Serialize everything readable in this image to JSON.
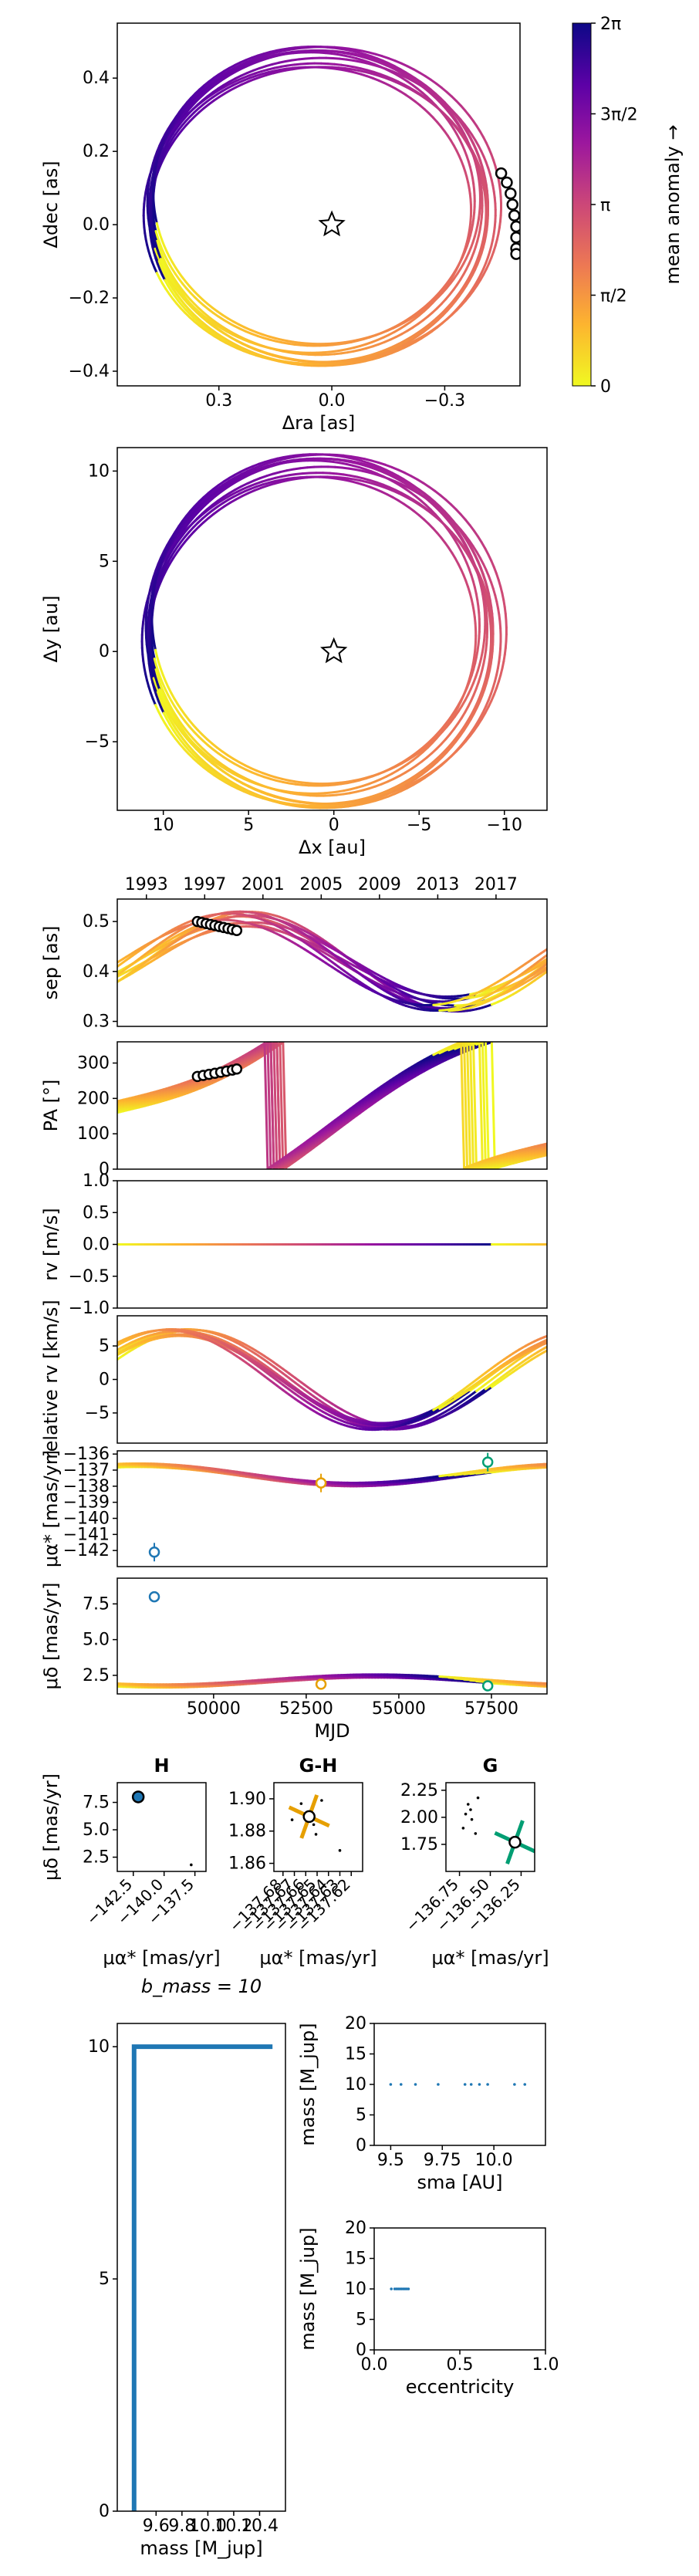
{
  "chart_data": [
    {
      "id": "sky",
      "type": "line",
      "xlabel": "Δra [as]",
      "ylabel": "Δdec [as]",
      "xlim": [
        0.57,
        -0.5
      ],
      "ylim": [
        -0.44,
        0.55
      ],
      "xticks": [
        {
          "v": 0.3,
          "label": "0.3"
        },
        {
          "v": 0.0,
          "label": "0.0"
        },
        {
          "v": -0.3,
          "label": "−0.3"
        }
      ],
      "yticks": [
        {
          "v": 0.4,
          "label": "0.4"
        },
        {
          "v": 0.2,
          "label": "0.2"
        },
        {
          "v": 0.0,
          "label": "0.0"
        },
        {
          "v": -0.2,
          "label": "−0.2"
        },
        {
          "v": -0.4,
          "label": "−0.4"
        }
      ],
      "orbits": [
        {
          "cx": 0.035,
          "cy": 0.045,
          "a": 0.45,
          "b": 0.43,
          "rot": 0.0
        },
        {
          "cx": 0.03,
          "cy": 0.05,
          "a": 0.445,
          "b": 0.425,
          "rot": 0.05
        },
        {
          "cx": 0.045,
          "cy": 0.03,
          "a": 0.455,
          "b": 0.41,
          "rot": -0.05
        },
        {
          "cx": 0.04,
          "cy": 0.06,
          "a": 0.44,
          "b": 0.415,
          "rot": 0.09
        },
        {
          "cx": 0.025,
          "cy": 0.035,
          "a": 0.46,
          "b": 0.42,
          "rot": 0.02
        },
        {
          "cx": 0.05,
          "cy": 0.07,
          "a": 0.43,
          "b": 0.4,
          "rot": 0.12
        },
        {
          "cx": 0.035,
          "cy": 0.025,
          "a": 0.45,
          "b": 0.405,
          "rot": -0.09
        },
        {
          "cx": 0.02,
          "cy": 0.055,
          "a": 0.47,
          "b": 0.43,
          "rot": 0.06
        },
        {
          "cx": 0.055,
          "cy": 0.04,
          "a": 0.425,
          "b": 0.39,
          "rot": 0.0
        },
        {
          "cx": 0.04,
          "cy": 0.08,
          "a": 0.435,
          "b": 0.405,
          "rot": 0.15
        }
      ],
      "star": {
        "x": 0.0,
        "y": 0.0
      },
      "points": [
        {
          "x": -0.45,
          "y": 0.14
        },
        {
          "x": -0.465,
          "y": 0.115
        },
        {
          "x": -0.475,
          "y": 0.085
        },
        {
          "x": -0.48,
          "y": 0.055
        },
        {
          "x": -0.485,
          "y": 0.025
        },
        {
          "x": -0.49,
          "y": -0.005
        },
        {
          "x": -0.49,
          "y": -0.035
        },
        {
          "x": -0.49,
          "y": -0.065
        },
        {
          "x": -0.49,
          "y": -0.08
        }
      ]
    },
    {
      "id": "au",
      "type": "line",
      "xlabel": "Δx [au]",
      "ylabel": "Δy [au]",
      "xlim": [
        12.7,
        -12.5
      ],
      "ylim": [
        -8.8,
        11.3
      ],
      "xticks": [
        {
          "v": 10,
          "label": "10"
        },
        {
          "v": 5,
          "label": "5"
        },
        {
          "v": 0,
          "label": "0"
        },
        {
          "v": -5,
          "label": "−5"
        },
        {
          "v": -10,
          "label": "−10"
        }
      ],
      "yticks": [
        {
          "v": 10,
          "label": "10"
        },
        {
          "v": 5,
          "label": "5"
        },
        {
          "v": 0,
          "label": "0"
        },
        {
          "v": -5,
          "label": "−5"
        }
      ],
      "star": {
        "x": 0.0,
        "y": 0.0
      }
    },
    {
      "id": "colorbar",
      "type": "heatmap",
      "label": "mean anomaly →",
      "ticks": [
        {
          "v": 0,
          "label": "0"
        },
        {
          "v": 0.25,
          "label": "π/2"
        },
        {
          "v": 0.5,
          "label": "π"
        },
        {
          "v": 0.75,
          "label": "3π/2"
        },
        {
          "v": 1.0,
          "label": "2π"
        }
      ],
      "colors": [
        "#f0f921",
        "#fdb42f",
        "#ed7953",
        "#cc4778",
        "#9c179e",
        "#5c01a6",
        "#0d0887"
      ]
    },
    {
      "id": "sep",
      "type": "line",
      "ylabel": "sep [as]",
      "xlim": [
        1991.0,
        2020.5
      ],
      "ylim": [
        0.29,
        0.545
      ],
      "top_ticks": [
        {
          "v": 1993,
          "label": "1993"
        },
        {
          "v": 1997,
          "label": "1997"
        },
        {
          "v": 2001,
          "label": "2001"
        },
        {
          "v": 2005,
          "label": "2005"
        },
        {
          "v": 2009,
          "label": "2009"
        },
        {
          "v": 2013,
          "label": "2013"
        },
        {
          "v": 2017,
          "label": "2017"
        }
      ],
      "yticks": [
        {
          "v": 0.5,
          "label": "0.5"
        },
        {
          "v": 0.4,
          "label": "0.4"
        },
        {
          "v": 0.3,
          "label": "0.3"
        }
      ],
      "points": [
        {
          "x": 1996.5,
          "y": 0.5
        },
        {
          "x": 1996.8,
          "y": 0.498
        },
        {
          "x": 1997.1,
          "y": 0.496
        },
        {
          "x": 1997.4,
          "y": 0.494
        },
        {
          "x": 1997.7,
          "y": 0.492
        },
        {
          "x": 1998.0,
          "y": 0.49
        },
        {
          "x": 1998.3,
          "y": 0.488
        },
        {
          "x": 1998.6,
          "y": 0.486
        },
        {
          "x": 1998.9,
          "y": 0.484
        },
        {
          "x": 1999.2,
          "y": 0.482
        }
      ]
    },
    {
      "id": "pa",
      "type": "line",
      "ylabel": "PA [°]",
      "xlim": [
        1991.0,
        2020.5
      ],
      "ylim": [
        0,
        360
      ],
      "yticks": [
        {
          "v": 300,
          "label": "300"
        },
        {
          "v": 200,
          "label": "200"
        },
        {
          "v": 100,
          "label": "100"
        },
        {
          "v": 0,
          "label": "0"
        }
      ],
      "points": [
        {
          "x": 1996.5,
          "y": 262
        },
        {
          "x": 1996.9,
          "y": 265
        },
        {
          "x": 1997.3,
          "y": 268
        },
        {
          "x": 1997.7,
          "y": 271
        },
        {
          "x": 1998.1,
          "y": 274
        },
        {
          "x": 1998.5,
          "y": 277
        },
        {
          "x": 1998.9,
          "y": 280
        },
        {
          "x": 1999.2,
          "y": 283
        }
      ]
    },
    {
      "id": "rv",
      "type": "line",
      "ylabel": "rv [m/s]",
      "xlim": [
        1991.0,
        2020.5
      ],
      "ylim": [
        -1.0,
        1.0
      ],
      "yticks": [
        {
          "v": 1.0,
          "label": "1.0"
        },
        {
          "v": 0.5,
          "label": "0.5"
        },
        {
          "v": 0.0,
          "label": "0.0"
        },
        {
          "v": -0.5,
          "label": "−0.5"
        },
        {
          "v": -1.0,
          "label": "−1.0"
        }
      ]
    },
    {
      "id": "relrv",
      "type": "line",
      "ylabel": "relative rv [km/s]",
      "xlim": [
        1991.0,
        2020.5
      ],
      "ylim": [
        -9.5,
        9.5
      ],
      "yticks": [
        {
          "v": 5,
          "label": "5"
        },
        {
          "v": 0,
          "label": "0"
        },
        {
          "v": -5,
          "label": "−5"
        }
      ]
    },
    {
      "id": "pmra",
      "type": "line",
      "ylabel": "μα* [mas/yr]",
      "xlim": [
        47400,
        59000
      ],
      "ylim": [
        -143.0,
        -135.8
      ],
      "yticks": [
        {
          "v": -136,
          "label": "−136"
        },
        {
          "v": -137,
          "label": "−137"
        },
        {
          "v": -138,
          "label": "−138"
        },
        {
          "v": -139,
          "label": "−139"
        },
        {
          "v": -140,
          "label": "−140"
        },
        {
          "v": -141,
          "label": "−141"
        },
        {
          "v": -142,
          "label": "−142"
        }
      ],
      "points": [
        {
          "x": 48400,
          "y": -142.1,
          "color": "#1f77b4"
        },
        {
          "x": 52900,
          "y": -137.8,
          "color": "#e69f00"
        },
        {
          "x": 57400,
          "y": -136.5,
          "color": "#009e73"
        }
      ]
    },
    {
      "id": "pmdec",
      "type": "line",
      "xlabel": "MJD",
      "ylabel": "μδ [mas/yr]",
      "xlim": [
        47400,
        59000
      ],
      "ylim": [
        1.2,
        9.3
      ],
      "xticks": [
        {
          "v": 50000,
          "label": "50000"
        },
        {
          "v": 52500,
          "label": "52500"
        },
        {
          "v": 55000,
          "label": "55000"
        },
        {
          "v": 57500,
          "label": "57500"
        }
      ],
      "yticks": [
        {
          "v": 7.5,
          "label": "7.5"
        },
        {
          "v": 5.0,
          "label": "5.0"
        },
        {
          "v": 2.5,
          "label": "2.5"
        }
      ],
      "points": [
        {
          "x": 48400,
          "y": 8.0,
          "color": "#1f77b4"
        },
        {
          "x": 52900,
          "y": 1.88,
          "color": "#e69f00"
        },
        {
          "x": 57400,
          "y": 1.77,
          "color": "#009e73"
        }
      ]
    },
    {
      "id": "pm_H",
      "type": "scatter",
      "title": "H",
      "xlabel": "μα* [mas/yr]",
      "ylabel": "μδ [mas/yr]",
      "xlim": [
        -143.8,
        -136.6
      ],
      "ylim": [
        1.2,
        9.3
      ],
      "xticks": [
        {
          "v": -142.5,
          "label": "−142.5"
        },
        {
          "v": -140.0,
          "label": "−140.0"
        },
        {
          "v": -137.5,
          "label": "−137.5"
        }
      ],
      "yticks": [
        {
          "v": 7.5,
          "label": "7.5"
        },
        {
          "v": 5.0,
          "label": "5.0"
        },
        {
          "v": 2.5,
          "label": "2.5"
        }
      ],
      "obs": {
        "x": -142.1,
        "y": 8.0,
        "color": "#1f77b4"
      },
      "model": [
        {
          "x": -137.8,
          "y": 1.8
        }
      ]
    },
    {
      "id": "pm_GH",
      "type": "scatter",
      "title": "G-H",
      "xlabel": "μα* [mas/yr]",
      "xlim": [
        -137.688,
        -137.61
      ],
      "ylim": [
        1.855,
        1.91
      ],
      "xticks": [
        {
          "v": -137.68,
          "label": "−137.68"
        },
        {
          "v": -137.67,
          "label": "−137.67"
        },
        {
          "v": -137.66,
          "label": "−137.66"
        },
        {
          "v": -137.65,
          "label": "−137.65"
        },
        {
          "v": -137.64,
          "label": "−137.64"
        },
        {
          "v": -137.63,
          "label": "−137.63"
        },
        {
          "v": -137.62,
          "label": "−137.62"
        }
      ],
      "yticks": [
        {
          "v": 1.9,
          "label": "1.90"
        },
        {
          "v": 1.88,
          "label": "1.88"
        },
        {
          "v": 1.86,
          "label": "1.86"
        }
      ],
      "obs": {
        "x": -137.657,
        "y": 1.889,
        "color": "#e69f00"
      },
      "model": [
        {
          "x": -137.672,
          "y": 1.887
        },
        {
          "x": -137.664,
          "y": 1.897
        },
        {
          "x": -137.651,
          "y": 1.878
        },
        {
          "x": -137.646,
          "y": 1.899
        },
        {
          "x": -137.653,
          "y": 1.884
        },
        {
          "x": -137.63,
          "y": 1.868
        }
      ]
    },
    {
      "id": "pm_G",
      "type": "scatter",
      "title": "G",
      "xlabel": "μα* [mas/yr]",
      "xlim": [
        -136.86,
        -136.14
      ],
      "ylim": [
        1.5,
        2.32
      ],
      "xticks": [
        {
          "v": -136.75,
          "label": "−136.75"
        },
        {
          "v": -136.5,
          "label": "−136.50"
        },
        {
          "v": -136.25,
          "label": "−136.25"
        }
      ],
      "yticks": [
        {
          "v": 2.25,
          "label": "2.25"
        },
        {
          "v": 2.0,
          "label": "2.00"
        },
        {
          "v": 1.75,
          "label": "1.75"
        }
      ],
      "obs": {
        "x": -136.3,
        "y": 1.77,
        "color": "#009e73"
      },
      "model": [
        {
          "x": -136.68,
          "y": 2.12
        },
        {
          "x": -136.66,
          "y": 2.07
        },
        {
          "x": -136.7,
          "y": 2.03
        },
        {
          "x": -136.65,
          "y": 1.98
        },
        {
          "x": -136.72,
          "y": 1.9
        },
        {
          "x": -136.62,
          "y": 1.85
        },
        {
          "x": -136.6,
          "y": 2.18
        }
      ]
    },
    {
      "id": "hist",
      "type": "line",
      "title": "b_mass = 10",
      "xlabel": "mass [M_jup]",
      "xlim": [
        9.3,
        10.6
      ],
      "ylim": [
        0,
        10.5
      ],
      "xticks": [
        {
          "v": 9.6,
          "label": "9.6"
        },
        {
          "v": 9.8,
          "label": "9.8"
        },
        {
          "v": 10.0,
          "label": "10.0"
        },
        {
          "v": 10.2,
          "label": "10.2"
        },
        {
          "v": 10.4,
          "label": "10.4"
        }
      ],
      "yticks": [
        {
          "v": 10,
          "label": "10"
        },
        {
          "v": 5,
          "label": "5"
        },
        {
          "v": 0,
          "label": "0"
        }
      ],
      "x": [
        9.43,
        9.43,
        9.45,
        9.45,
        10.5
      ],
      "y": [
        0,
        10,
        10,
        10,
        10
      ],
      "color": "#1f77b4"
    },
    {
      "id": "sma",
      "type": "scatter",
      "xlabel": "sma [AU]",
      "ylabel": "mass [M_jup]",
      "xlim": [
        9.42,
        10.25
      ],
      "ylim": [
        0,
        20
      ],
      "xticks": [
        {
          "v": 9.5,
          "label": "9.5"
        },
        {
          "v": 9.75,
          "label": "9.75"
        },
        {
          "v": 10.0,
          "label": "10.0"
        }
      ],
      "yticks": [
        {
          "v": 20,
          "label": "20"
        },
        {
          "v": 15,
          "label": "15"
        },
        {
          "v": 10,
          "label": "10"
        },
        {
          "v": 5,
          "label": "5"
        },
        {
          "v": 0,
          "label": "0"
        }
      ],
      "x": [
        9.5,
        9.55,
        9.62,
        9.73,
        9.86,
        9.89,
        9.93,
        9.97,
        10.1,
        10.15
      ],
      "y": [
        10,
        10,
        10,
        10,
        10,
        10,
        10,
        10,
        10,
        10
      ],
      "color": "#1f77b4"
    },
    {
      "id": "ecc",
      "type": "scatter",
      "xlabel": "eccentricity",
      "ylabel": "mass [M_jup]",
      "xlim": [
        0,
        1
      ],
      "ylim": [
        0,
        20
      ],
      "xticks": [
        {
          "v": 0.0,
          "label": "0.0"
        },
        {
          "v": 0.5,
          "label": "0.5"
        },
        {
          "v": 1.0,
          "label": "1.0"
        }
      ],
      "yticks": [
        {
          "v": 20,
          "label": "20"
        },
        {
          "v": 15,
          "label": "15"
        },
        {
          "v": 10,
          "label": "10"
        },
        {
          "v": 5,
          "label": "5"
        },
        {
          "v": 0,
          "label": "0"
        }
      ],
      "x": [
        0.1,
        0.12,
        0.13,
        0.14,
        0.15,
        0.16,
        0.17,
        0.18,
        0.19,
        0.2
      ],
      "y": [
        10,
        10,
        10,
        10,
        10,
        10,
        10,
        10,
        10,
        10
      ],
      "color": "#1f77b4"
    }
  ]
}
